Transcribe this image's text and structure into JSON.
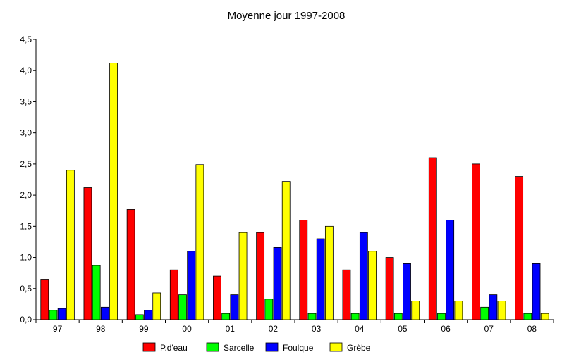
{
  "chart_data": {
    "type": "bar",
    "title": "Moyenne jour 1997-2008",
    "xlabel": "",
    "ylabel": "",
    "ylim": [
      0,
      4.5
    ],
    "yticks": [
      0,
      0.5,
      1,
      1.5,
      2,
      2.5,
      3,
      3.5,
      4,
      4.5
    ],
    "ytick_labels": [
      "0,0",
      "0,5",
      "1,0",
      "1,5",
      "2,0",
      "2,5",
      "3,0",
      "3,5",
      "4,0",
      "4,5"
    ],
    "categories": [
      "97",
      "98",
      "99",
      "00",
      "01",
      "02",
      "03",
      "04",
      "05",
      "06",
      "07",
      "08"
    ],
    "series": [
      {
        "name": "P.d'eau",
        "color": "#ff0000",
        "values": [
          0.65,
          2.12,
          1.77,
          0.8,
          0.7,
          1.4,
          1.6,
          0.8,
          1.0,
          2.6,
          2.5,
          2.3
        ]
      },
      {
        "name": "Sarcelle",
        "color": "#00ff00",
        "values": [
          0.15,
          0.87,
          0.08,
          0.4,
          0.1,
          0.33,
          0.1,
          0.1,
          0.1,
          0.1,
          0.2,
          0.1
        ]
      },
      {
        "name": "Foulque",
        "color": "#0000ff",
        "values": [
          0.18,
          0.2,
          0.15,
          1.1,
          0.4,
          1.16,
          1.3,
          1.4,
          0.9,
          1.6,
          0.4,
          0.9
        ]
      },
      {
        "name": "Grèbe",
        "color": "#ffff00",
        "values": [
          2.4,
          4.12,
          0.43,
          2.49,
          1.4,
          2.22,
          1.5,
          1.1,
          0.3,
          0.3,
          0.3,
          0.1
        ]
      }
    ],
    "grid": false,
    "legend_position": "bottom"
  }
}
